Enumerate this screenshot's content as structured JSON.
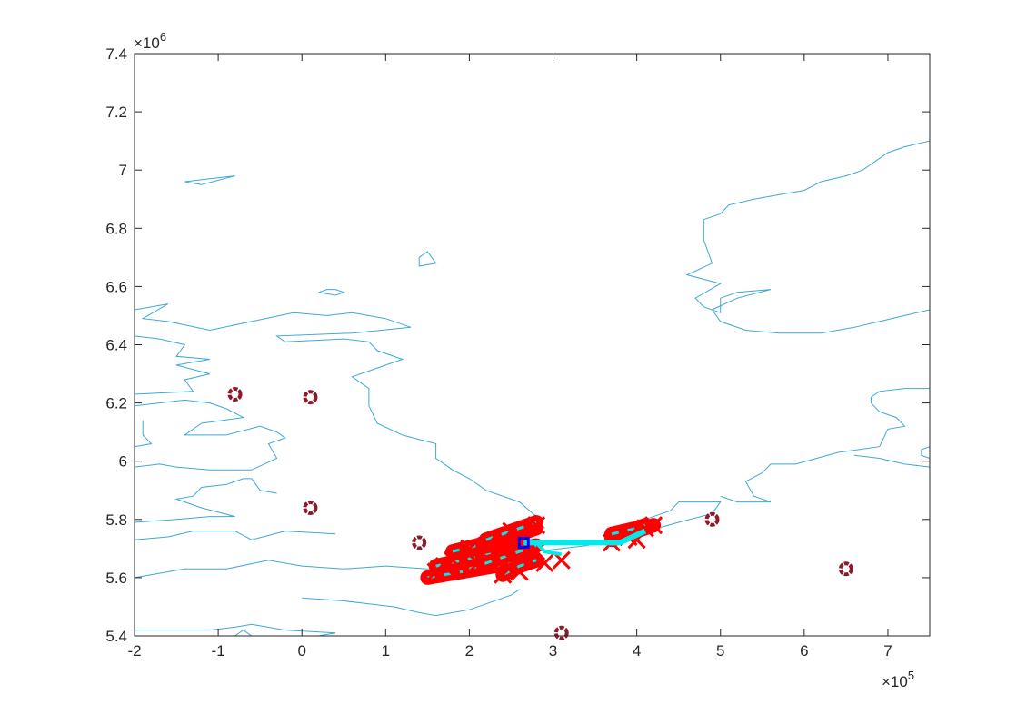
{
  "chart_data": {
    "type": "scatter",
    "title": "",
    "xlabel": "",
    "ylabel": "",
    "xlim": [
      -200000,
      750000
    ],
    "ylim": [
      5400000,
      7400000
    ],
    "x_ticks": [
      -200000,
      -100000,
      0,
      100000,
      200000,
      300000,
      400000,
      500000,
      600000,
      700000
    ],
    "x_tick_labels": [
      "-2",
      "-1",
      "0",
      "1",
      "2",
      "3",
      "4",
      "5",
      "6",
      "7"
    ],
    "y_ticks": [
      5400000,
      5600000,
      5800000,
      6000000,
      6200000,
      6400000,
      6600000,
      6800000,
      7000000,
      7200000,
      7400000
    ],
    "y_tick_labels": [
      "5.4",
      "5.6",
      "5.8",
      "6",
      "6.2",
      "6.4",
      "6.6",
      "6.8",
      "7",
      "7.2",
      "7.4"
    ],
    "x_exponent_label": "×10",
    "x_exponent_power": "5",
    "y_exponent_label": "×10",
    "y_exponent_power": "6",
    "grid": false,
    "colors": {
      "coastline": "#3ea8d8",
      "stations": "#8b1a2a",
      "crosses": "#ff0000",
      "track": "#00eaea",
      "origin": "#0000ff",
      "axes": "#262626"
    },
    "coastlines": [
      [
        [
          -200000,
          6520000
        ],
        [
          -160000,
          6540000
        ],
        [
          -190000,
          6490000
        ],
        [
          -160000,
          6480000
        ],
        [
          -110000,
          6450000
        ],
        [
          -60000,
          6480000
        ],
        [
          -10000,
          6510000
        ],
        [
          30000,
          6500000
        ],
        [
          60000,
          6510000
        ],
        [
          100000,
          6490000
        ],
        [
          130000,
          6460000
        ],
        [
          60000,
          6440000
        ],
        [
          -30000,
          6430000
        ],
        [
          -20000,
          6410000
        ],
        [
          50000,
          6420000
        ],
        [
          80000,
          6410000
        ],
        [
          90000,
          6380000
        ],
        [
          120000,
          6350000
        ],
        [
          90000,
          6320000
        ],
        [
          60000,
          6290000
        ],
        [
          80000,
          6250000
        ],
        [
          80000,
          6190000
        ],
        [
          90000,
          6130000
        ],
        [
          120000,
          6090000
        ],
        [
          160000,
          6060000
        ],
        [
          160000,
          6010000
        ],
        [
          180000,
          5970000
        ],
        [
          200000,
          5940000
        ],
        [
          220000,
          5900000
        ],
        [
          260000,
          5860000
        ],
        [
          280000,
          5810000
        ],
        [
          290000,
          5770000
        ]
      ],
      [
        [
          -200000,
          6430000
        ],
        [
          -170000,
          6420000
        ],
        [
          -140000,
          6400000
        ],
        [
          -150000,
          6360000
        ],
        [
          -110000,
          6350000
        ],
        [
          -150000,
          6330000
        ],
        [
          -110000,
          6300000
        ],
        [
          -140000,
          6280000
        ],
        [
          -130000,
          6240000
        ],
        [
          -200000,
          6230000
        ]
      ],
      [
        [
          -190000,
          6140000
        ],
        [
          -190000,
          6090000
        ],
        [
          -180000,
          6060000
        ],
        [
          -200000,
          6050000
        ]
      ],
      [
        [
          -200000,
          6190000
        ],
        [
          -140000,
          6210000
        ],
        [
          -110000,
          6200000
        ],
        [
          -90000,
          6180000
        ],
        [
          -70000,
          6150000
        ],
        [
          -120000,
          6130000
        ],
        [
          -140000,
          6090000
        ],
        [
          -90000,
          6090000
        ],
        [
          -50000,
          6120000
        ],
        [
          -30000,
          6100000
        ],
        [
          -20000,
          6080000
        ],
        [
          -40000,
          6060000
        ],
        [
          -30000,
          6010000
        ],
        [
          -60000,
          5970000
        ],
        [
          -110000,
          5970000
        ],
        [
          -150000,
          5980000
        ],
        [
          -170000,
          5990000
        ],
        [
          -200000,
          5980000
        ]
      ],
      [
        [
          -200000,
          5790000
        ],
        [
          -150000,
          5800000
        ],
        [
          -110000,
          5810000
        ],
        [
          -80000,
          5810000
        ],
        [
          -120000,
          5840000
        ],
        [
          -150000,
          5870000
        ],
        [
          -130000,
          5880000
        ],
        [
          -120000,
          5910000
        ],
        [
          -90000,
          5920000
        ],
        [
          -70000,
          5940000
        ],
        [
          -60000,
          5940000
        ],
        [
          -50000,
          5900000
        ],
        [
          -30000,
          5890000
        ]
      ],
      [
        [
          -200000,
          5730000
        ],
        [
          -160000,
          5740000
        ],
        [
          -130000,
          5760000
        ],
        [
          -80000,
          5760000
        ],
        [
          -60000,
          5730000
        ],
        [
          -20000,
          5760000
        ],
        [
          40000,
          5750000
        ]
      ],
      [
        [
          -200000,
          5600000
        ],
        [
          -140000,
          5630000
        ],
        [
          -90000,
          5630000
        ],
        [
          -40000,
          5660000
        ],
        [
          0,
          5640000
        ],
        [
          50000,
          5630000
        ],
        [
          100000,
          5640000
        ],
        [
          150000,
          5630000
        ],
        [
          200000,
          5630000
        ],
        [
          260000,
          5650000
        ],
        [
          280000,
          5690000
        ],
        [
          340000,
          5710000
        ],
        [
          400000,
          5750000
        ],
        [
          450000,
          5790000
        ],
        [
          490000,
          5820000
        ],
        [
          500000,
          5860000
        ],
        [
          450000,
          5860000
        ],
        [
          440000,
          5830000
        ],
        [
          410000,
          5800000
        ]
      ],
      [
        [
          -200000,
          5420000
        ],
        [
          -160000,
          5420000
        ],
        [
          -110000,
          5420000
        ],
        [
          -80000,
          5430000
        ],
        [
          -60000,
          5440000
        ],
        [
          -20000,
          5420000
        ],
        [
          40000,
          5410000
        ]
      ],
      [
        [
          0,
          5530000
        ],
        [
          50000,
          5520000
        ],
        [
          80000,
          5510000
        ],
        [
          110000,
          5500000
        ],
        [
          140000,
          5480000
        ],
        [
          160000,
          5470000
        ],
        [
          200000,
          5490000
        ],
        [
          250000,
          5540000
        ],
        [
          260000,
          5560000
        ]
      ],
      [
        [
          -80000,
          5400000
        ],
        [
          -70000,
          5420000
        ],
        [
          -60000,
          5400000
        ]
      ],
      [
        [
          20000,
          5400000
        ],
        [
          40000,
          5410000
        ]
      ],
      [
        [
          750000,
          6050000
        ],
        [
          740000,
          6040000
        ],
        [
          740000,
          6020000
        ],
        [
          750000,
          6010000
        ]
      ],
      [
        [
          750000,
          6250000
        ],
        [
          720000,
          6250000
        ],
        [
          690000,
          6240000
        ],
        [
          680000,
          6220000
        ],
        [
          680000,
          6200000
        ],
        [
          690000,
          6170000
        ],
        [
          710000,
          6150000
        ],
        [
          720000,
          6120000
        ],
        [
          700000,
          6110000
        ],
        [
          690000,
          6050000
        ],
        [
          640000,
          6030000
        ],
        [
          590000,
          5990000
        ],
        [
          560000,
          5990000
        ],
        [
          550000,
          5960000
        ],
        [
          530000,
          5930000
        ],
        [
          540000,
          5880000
        ],
        [
          560000,
          5860000
        ],
        [
          520000,
          5860000
        ],
        [
          500000,
          5880000
        ]
      ],
      [
        [
          750000,
          5980000
        ],
        [
          720000,
          5990000
        ],
        [
          690000,
          6010000
        ],
        [
          660000,
          6020000
        ]
      ],
      [
        [
          750000,
          6520000
        ],
        [
          720000,
          6500000
        ],
        [
          690000,
          6480000
        ],
        [
          660000,
          6460000
        ],
        [
          620000,
          6440000
        ],
        [
          570000,
          6440000
        ],
        [
          530000,
          6450000
        ],
        [
          500000,
          6480000
        ],
        [
          490000,
          6520000
        ],
        [
          520000,
          6560000
        ],
        [
          560000,
          6590000
        ],
        [
          520000,
          6580000
        ],
        [
          500000,
          6560000
        ],
        [
          500000,
          6510000
        ],
        [
          480000,
          6530000
        ],
        [
          470000,
          6560000
        ],
        [
          500000,
          6610000
        ],
        [
          460000,
          6640000
        ],
        [
          490000,
          6680000
        ],
        [
          480000,
          6760000
        ],
        [
          480000,
          6830000
        ],
        [
          500000,
          6850000
        ],
        [
          510000,
          6880000
        ],
        [
          540000,
          6900000
        ],
        [
          580000,
          6920000
        ],
        [
          600000,
          6930000
        ],
        [
          620000,
          6960000
        ],
        [
          650000,
          6980000
        ],
        [
          670000,
          7000000
        ],
        [
          700000,
          7060000
        ],
        [
          720000,
          7080000
        ],
        [
          750000,
          7100000
        ]
      ],
      [
        [
          -140000,
          6960000
        ],
        [
          -110000,
          6970000
        ],
        [
          -80000,
          6980000
        ],
        [
          -120000,
          6950000
        ],
        [
          -140000,
          6960000
        ]
      ],
      [
        [
          140000,
          6700000
        ],
        [
          150000,
          6720000
        ],
        [
          160000,
          6680000
        ],
        [
          140000,
          6670000
        ],
        [
          140000,
          6700000
        ]
      ],
      [
        [
          20000,
          6580000
        ],
        [
          30000,
          6590000
        ],
        [
          40000,
          6590000
        ],
        [
          50000,
          6580000
        ],
        [
          40000,
          6570000
        ],
        [
          20000,
          6580000
        ]
      ]
    ],
    "stations": [
      [
        -80000,
        6230000
      ],
      [
        10000,
        6220000
      ],
      [
        10000,
        5840000
      ],
      [
        140000,
        5720000
      ],
      [
        490000,
        5800000
      ],
      [
        650000,
        5630000
      ],
      [
        310000,
        5410000
      ]
    ],
    "origin": [
      265000,
      5720000
    ],
    "track": [
      [
        265000,
        5720000
      ],
      [
        300000,
        5720000
      ],
      [
        380000,
        5720000
      ],
      [
        410000,
        5760000
      ]
    ],
    "track_branch": [
      [
        280000,
        5720000
      ],
      [
        290000,
        5690000
      ],
      [
        310000,
        5680000
      ]
    ],
    "dense_trails": [
      [
        [
          150000,
          5600000
        ],
        [
          230000,
          5640000
        ],
        [
          280000,
          5660000
        ]
      ],
      [
        [
          160000,
          5640000
        ],
        [
          240000,
          5690000
        ],
        [
          280000,
          5710000
        ]
      ],
      [
        [
          180000,
          5690000
        ],
        [
          250000,
          5740000
        ],
        [
          280000,
          5770000
        ]
      ],
      [
        [
          220000,
          5730000
        ],
        [
          260000,
          5770000
        ],
        [
          280000,
          5790000
        ]
      ],
      [
        [
          200000,
          5630000
        ],
        [
          250000,
          5680000
        ],
        [
          270000,
          5700000
        ]
      ],
      [
        [
          240000,
          5610000
        ],
        [
          260000,
          5640000
        ],
        [
          280000,
          5660000
        ]
      ],
      [
        [
          370000,
          5730000
        ],
        [
          400000,
          5760000
        ],
        [
          420000,
          5780000
        ]
      ],
      [
        [
          370000,
          5750000
        ],
        [
          400000,
          5770000
        ],
        [
          410000,
          5780000
        ]
      ]
    ],
    "crosses": [
      [
        160000,
        5620000
      ],
      [
        180000,
        5660000
      ],
      [
        200000,
        5700000
      ],
      [
        220000,
        5710000
      ],
      [
        250000,
        5760000
      ],
      [
        280000,
        5780000
      ],
      [
        170000,
        5640000
      ],
      [
        210000,
        5650000
      ],
      [
        240000,
        5690000
      ],
      [
        260000,
        5720000
      ],
      [
        240000,
        5610000
      ],
      [
        260000,
        5620000
      ],
      [
        280000,
        5690000
      ],
      [
        310000,
        5660000
      ],
      [
        290000,
        5650000
      ],
      [
        370000,
        5720000
      ],
      [
        390000,
        5740000
      ],
      [
        410000,
        5770000
      ],
      [
        420000,
        5780000
      ],
      [
        400000,
        5730000
      ]
    ]
  }
}
